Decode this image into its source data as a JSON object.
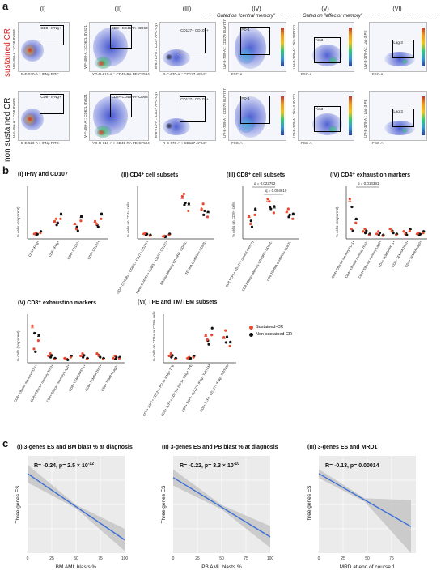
{
  "panel_a": {
    "letter": "a",
    "columns": [
      "(I)",
      "(II)",
      "(III)",
      "(IV)",
      "(V)",
      "(VI)"
    ],
    "gated_central": "Gated on \"central memory\"",
    "gated_effector": "Gated on \"effector memory\"",
    "rows": [
      {
        "label": "sustained CR",
        "color": "#d62728"
      },
      {
        "label": "non sustained CR",
        "color": "#111111"
      }
    ],
    "xlabels": [
      "B-E-520-A :: IFNg FITC",
      "YG-D-610-A :: CD45-RA PE-CF594",
      "R-C-670-A :: CD127 AF647",
      "FSC-A",
      "FSC-A",
      "FSC-A"
    ],
    "ylabels": [
      "V-F-450-A :: CD8 BV605",
      "V-F-450-A :: CD62L BV421",
      "B-B-710-A :: CD27 APC-Cy7",
      "UV-B-739-A :: CD279 BUV737",
      "UV-B-379-A :: Tim-3 BV711",
      "UV-B-379-A :: Lag-3 PE"
    ],
    "gate_names_top": [
      "CD8+ IFNg+",
      "CD8+ CD45RA- CD62L+",
      "CD127+ CD107+",
      "PD-1",
      "Tim3+",
      "Lag-3"
    ],
    "gate_names_bottom": [
      "CD8+ IFNg+",
      "CD8+ CD45RA- CD62L+",
      "CD127+ CD107+",
      "PD-1",
      "Tim3+",
      "Lag-3"
    ]
  },
  "panel_b": {
    "letter": "b",
    "subplots": [
      {
        "title": "(I) IFNγ and CD107",
        "ylabel": "% cells (on parent)",
        "categories": [
          "CD4+ IFNg+",
          "CD8+ IFNg+",
          "CD4+ CD107+",
          "CD8+ CD107+"
        ]
      },
      {
        "title": "(II) CD4⁺ cell subsets",
        "ylabel": "% cells on CD4+ cells",
        "categories": [
          "CD4+ CD45RA+ CD62L+ CD27+ CD127+",
          "Naive CD45RA+ CD62L+ CD27+ CD127+",
          "Effector Memory CD45RA- CD62L-",
          "TEMRA CD45RA+ CD62L-"
        ]
      },
      {
        "title": "(III) CD8⁺ cell subsets",
        "ylabel": "% cells on CD8+ cells",
        "categories": [
          "CD8 TCF1+ CD127+ central memory",
          "CD8 Effector Memory CD45RA- CD62L-",
          "CD8 TEMRA CD45RA+ CD62L-"
        ],
        "annotations": [
          "q = 0.022792",
          "q = 0.004610"
        ]
      },
      {
        "title": "(IV) CD4⁺ exhaustion markers",
        "ylabel": "% cells (on parent)",
        "categories": [
          "CD4+ Effector memory PD-1+",
          "CD4+ Effector memory Tim3+",
          "CD4+ Effector memory Lag3+",
          "CD4+ TEMRA PD-1+",
          "CD4+ TEMRA Tim3+",
          "CD4+ TEMRA Lag3+"
        ],
        "annotations": [
          "q = 0.014391"
        ]
      },
      {
        "title": "(V) CD8⁺ exhaustion markers",
        "ylabel": "% cells (on parent)",
        "categories": [
          "CD8+ Effector memory PD-1+",
          "CD8+ Effector memory Tim3+",
          "CD8+ Effector memory Lag3+",
          "CD8+ TEMRA PD-1+",
          "CD8+ TEMRA Tim3+",
          "CD8+ TEMRA Lag3+"
        ]
      },
      {
        "title": "(VI) TPE and TM/TEM subsets",
        "ylabel": "% cells on CD4+ or CD8+ cells",
        "categories": [
          "CD4+ TCF1+ CD127+ PD-1+ IFNg+ TPE",
          "CD8+ TCF1+ CD127+ PD-1+ IFNg+ TPE",
          "CD4+ TCF1- CD127+ IFNg+ TM/TEM",
          "CD8+ TCF1- CD127+ IFNg+ TM/TEM"
        ]
      }
    ],
    "legend": [
      {
        "label": "Sustained-CR",
        "color": "#e8492f"
      },
      {
        "label": "Non-sustained CR",
        "color": "#111111"
      }
    ]
  },
  "panel_c": {
    "letter": "c",
    "chart_data": [
      {
        "type": "line",
        "title": "(I) 3-genes ES and BM blast % at diagnosis",
        "annotation_prefix": "R= -0.24, p= 2.5 × 10",
        "annotation_exp": "-12",
        "xlabel": "BM AML blasts %",
        "ylabel": "Three genes ES",
        "xlim": [
          0,
          100
        ],
        "xticks": [
          "0",
          "25",
          "50",
          "75",
          "100"
        ],
        "line": {
          "x": [
            0,
            100
          ],
          "y": [
            0.27,
            0.12
          ]
        },
        "ci_start": 0.02,
        "ci_end": 0.025
      },
      {
        "type": "line",
        "title": "(II) 3-genes ES and PB blast % at diagnosis",
        "annotation_prefix": "R= -0.22, p= 3.3 × 10",
        "annotation_exp": "-10",
        "xlabel": "PB AML blasts %",
        "ylabel": "Three genes ES",
        "xlim": [
          0,
          100
        ],
        "xticks": [
          "0",
          "25",
          "50",
          "75",
          "100"
        ],
        "line": {
          "x": [
            0,
            100
          ],
          "y": [
            0.22,
            0.11
          ]
        },
        "ci_start": 0.015,
        "ci_end": 0.02
      },
      {
        "type": "line",
        "title": "(III) 3-genes ES and MRD1",
        "annotation_prefix": "R= -0.13, p= 0.00014",
        "annotation_exp": "",
        "xlabel": "MRD at end of course 1",
        "ylabel": "Three genes ES",
        "xlim": [
          0,
          100
        ],
        "xticks": [
          "0",
          "25",
          "50",
          "75"
        ],
        "line": {
          "x": [
            0,
            95
          ],
          "y": [
            0.18,
            0.06
          ]
        },
        "ci_start": 0.01,
        "ci_end": 0.06
      }
    ]
  }
}
